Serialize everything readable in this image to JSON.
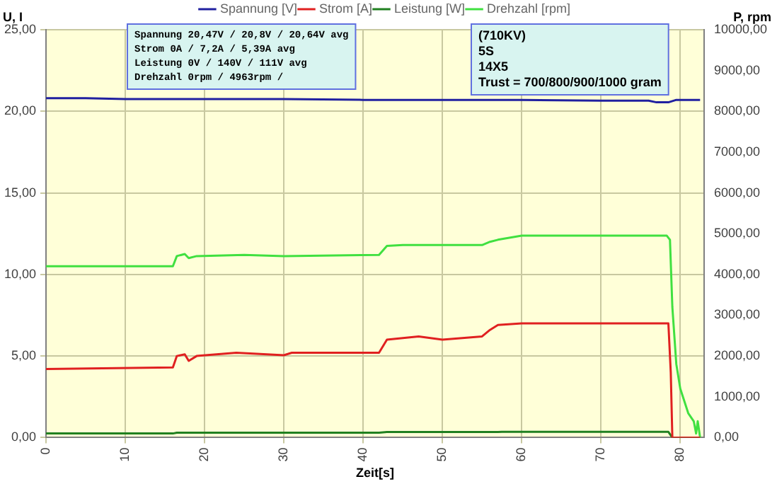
{
  "chart_data": {
    "type": "line",
    "xlabel": "Zeit[s]",
    "ylabel": "U, I",
    "y2label": "P, rpm",
    "xlim": [
      0,
      83
    ],
    "xticks": [
      0,
      10,
      20,
      30,
      40,
      50,
      60,
      70,
      80
    ],
    "ylim": [
      0,
      25
    ],
    "yticks": [
      {
        "value": 0,
        "label": "0,00"
      },
      {
        "value": 5,
        "label": "5,00"
      },
      {
        "value": 10,
        "label": "10,00"
      },
      {
        "value": 15,
        "label": "15,00"
      },
      {
        "value": 20,
        "label": "20,00"
      },
      {
        "value": 25,
        "label": "25,00"
      }
    ],
    "y2lim": [
      0,
      10000
    ],
    "y2ticks": [
      {
        "value": 0,
        "label": "0,00"
      },
      {
        "value": 1000,
        "label": "1000,00"
      },
      {
        "value": 2000,
        "label": "2000,00"
      },
      {
        "value": 3000,
        "label": "3000,00"
      },
      {
        "value": 4000,
        "label": "4000,00"
      },
      {
        "value": 5000,
        "label": "5000,00"
      },
      {
        "value": 6000,
        "label": "6000,00"
      },
      {
        "value": 7000,
        "label": "7000,00"
      },
      {
        "value": 8000,
        "label": "8000,00"
      },
      {
        "value": 9000,
        "label": "9000,00"
      },
      {
        "value": 10000,
        "label": "10000,00"
      }
    ],
    "grid": true,
    "legend": "top",
    "marker": "none",
    "line_style": "solid",
    "series": [
      {
        "name": "Spannung [V]",
        "color": "#2020a0",
        "x": [
          0,
          5,
          10,
          16,
          30,
          40,
          50,
          60,
          70,
          76,
          77,
          78.5,
          79.5,
          82.5
        ],
        "values": [
          20.8,
          20.8,
          20.75,
          20.75,
          20.75,
          20.7,
          20.7,
          20.7,
          20.65,
          20.65,
          20.55,
          20.55,
          20.7,
          20.7
        ]
      },
      {
        "name": "Strom [A]",
        "color": "#e02020",
        "x": [
          0,
          16,
          16.5,
          17.5,
          18,
          19,
          24,
          30,
          31,
          42,
          43,
          47,
          50,
          55,
          56,
          57,
          60,
          70,
          78.5,
          78.8,
          79,
          82.5
        ],
        "values": [
          4.2,
          4.3,
          5.0,
          5.1,
          4.7,
          5.0,
          5.2,
          5.05,
          5.2,
          5.2,
          6.0,
          6.2,
          6.0,
          6.2,
          6.6,
          6.9,
          7.0,
          7.0,
          7.0,
          4.0,
          0,
          0
        ]
      },
      {
        "name": "Leistung [W]",
        "color": "#208020",
        "axis": "y2",
        "x": [
          0,
          16,
          16.5,
          42,
          43,
          57,
          57.5,
          78.5,
          79,
          82.5
        ],
        "values": [
          100,
          100,
          120,
          120,
          135,
          135,
          140,
          140,
          0,
          0
        ]
      },
      {
        "name": "Drehzahl [rpm]",
        "color": "#40e040",
        "axis": "y2",
        "x": [
          0,
          16,
          16.5,
          17.5,
          18,
          19,
          25,
          30,
          42,
          43,
          45,
          55,
          56,
          57,
          60,
          70,
          78.3,
          78.7,
          79,
          79.5,
          80,
          81,
          81.7,
          82,
          82.2,
          82.5
        ],
        "values": [
          4200,
          4200,
          4450,
          4500,
          4400,
          4450,
          4480,
          4450,
          4480,
          4700,
          4720,
          4720,
          4800,
          4850,
          4950,
          4950,
          4950,
          4850,
          3200,
          1800,
          1200,
          600,
          400,
          100,
          400,
          0
        ]
      }
    ],
    "annotations": [
      "Spannung 20,47V / 20,8V / 20,64V avg\nStrom 0A / 7,2A / 5,39A avg\nLeistung 0V / 140V / 111V avg\nDrehzahl 0rpm / 4963rpm /",
      "(710KV)\n5S\n14X5\nTrust = 700/800/900/1000 gram"
    ]
  }
}
